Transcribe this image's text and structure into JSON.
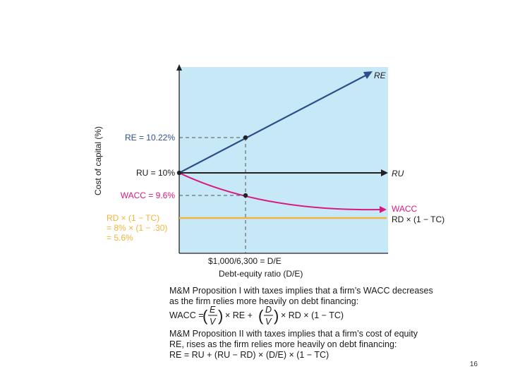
{
  "colors": {
    "plot_bg": "#c6e8f7",
    "re_line": "#2c4f8c",
    "ru_line": "#222222",
    "wacc_line": "#d9197e",
    "rd_line": "#f2b43a",
    "text_dark": "#1a1a1a"
  },
  "chart_data": {
    "type": "line",
    "ylabel": "Cost of capital (%)",
    "xlabel": "Debt-equity ratio (D/E)",
    "x_marker": {
      "text": "$1,000/6,300 = D/E",
      "value": 0.1587
    },
    "series": [
      {
        "name": "RE",
        "x": [
          0,
          0.1587,
          0.48
        ],
        "y": [
          10,
          10.22,
          10.67
        ]
      },
      {
        "name": "RU",
        "x": [
          0,
          0.48
        ],
        "y": [
          10,
          10
        ]
      },
      {
        "name": "WACC",
        "x": [
          0,
          0.1587,
          0.48
        ],
        "y": [
          10,
          9.6,
          9.05
        ]
      },
      {
        "name": "RD × (1 − TC)",
        "x": [
          0,
          0.48
        ],
        "y": [
          5.6,
          5.6
        ]
      }
    ],
    "y_labels": {
      "re": "RE = 10.22%",
      "ru": "RU = 10%",
      "wacc": "WACC = 9.6%",
      "rd_line1": "RD × (1 − TC)",
      "rd_line2": "= 8% × (1 − .30)",
      "rd_line3": "= 5.6%"
    },
    "end_labels": {
      "re": "RE",
      "ru": "RU",
      "wacc": "WACC",
      "rd": "RD × (1 − TC)"
    }
  },
  "text": {
    "prop1_line1": "M&M Proposition I with taxes implies that a firm’s WACC decreases",
    "prop1_line2": "as the firm relies more heavily on debt financing:",
    "wacc_formula_lhs": "WACC =",
    "wacc_formula_mid": "× RE +",
    "wacc_formula_rhs": "× RD × (1 − TC)",
    "frac1_num": "E",
    "frac1_den": "V",
    "frac2_num": "D",
    "frac2_den": "V",
    "prop2_line1": "M&M Proposition II with taxes implies that a firm’s cost of equity",
    "prop2_line2": "RE, rises as the firm relies more heavily on debt financing:",
    "prop2_formula": "RE = RU + (RU − RD) × (D/E) × (1 − TC)"
  },
  "page_number": "16"
}
